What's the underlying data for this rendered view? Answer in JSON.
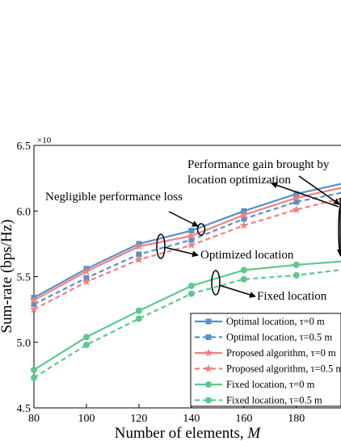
{
  "chart_data": {
    "type": "line",
    "xlabel": "Number of elements, ",
    "xlabel_var": "M",
    "ylabel": "Sum-rate (bps/Hz)",
    "y_multiplier": "×10",
    "xlim": [
      80,
      197
    ],
    "ylim": [
      4.5,
      6.5
    ],
    "xticks": [
      "80",
      "100",
      "120",
      "140",
      "160",
      "180"
    ],
    "yticks": [
      "4.5",
      "5.0",
      "5.5",
      "6.0",
      "6.5"
    ],
    "x": [
      80,
      100,
      120,
      140,
      160,
      180,
      200
    ],
    "series": [
      {
        "name": "Optimal location, ",
        "tau": "τ=0 m",
        "color": "#5b8fc9",
        "dash": false,
        "marker": "square",
        "values": [
          5.34,
          5.56,
          5.75,
          5.85,
          6.0,
          6.13,
          6.22
        ]
      },
      {
        "name": "Optimal location, ",
        "tau": "τ=0.5 m",
        "color": "#5b8fc9",
        "dash": true,
        "marker": "square",
        "values": [
          5.29,
          5.49,
          5.67,
          5.78,
          5.94,
          6.07,
          6.15
        ]
      },
      {
        "name": "Proposed algorithm, ",
        "tau": "τ=0 m",
        "color": "#f08080",
        "dash": false,
        "marker": "star",
        "values": [
          5.32,
          5.54,
          5.73,
          5.81,
          5.97,
          6.1,
          6.19
        ]
      },
      {
        "name": "Proposed algorithm, ",
        "tau": "τ=0.5 m",
        "color": "#f08080",
        "dash": true,
        "marker": "star",
        "values": [
          5.25,
          5.46,
          5.63,
          5.74,
          5.89,
          6.01,
          6.11
        ]
      },
      {
        "name": "Fixed location, ",
        "tau": "τ=0 m",
        "color": "#5cc98d",
        "dash": false,
        "marker": "circle",
        "values": [
          4.79,
          5.04,
          5.24,
          5.43,
          5.55,
          5.59,
          5.62
        ]
      },
      {
        "name": "Fixed location, ",
        "tau": "τ=0.5 m",
        "color": "#5cc98d",
        "dash": true,
        "marker": "circle",
        "values": [
          4.73,
          4.98,
          5.18,
          5.37,
          5.48,
          5.51,
          5.56
        ]
      }
    ],
    "annotations": {
      "gain_line1": "Performance gain brought by",
      "gain_line2": "location optimization",
      "negligible": "Negligible performance loss",
      "optimized": "Optimized location",
      "fixed": "Fixed location"
    },
    "legend_position": "bottom-right",
    "grid": false
  }
}
